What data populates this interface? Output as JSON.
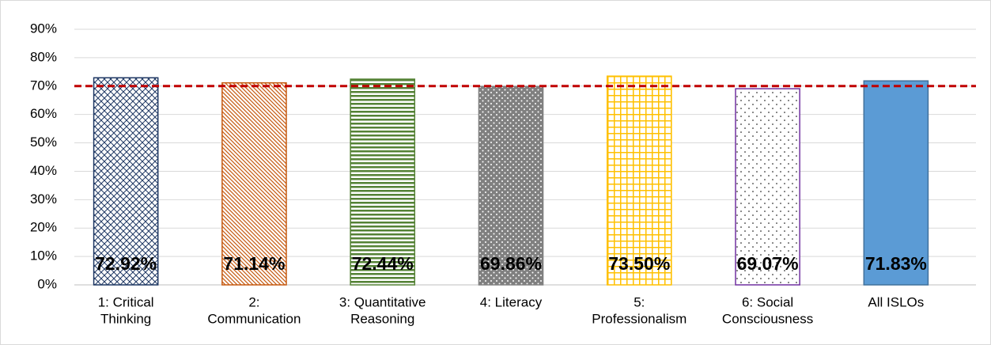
{
  "chart_data": {
    "type": "bar",
    "categories": [
      [
        "1: Critical",
        "Thinking"
      ],
      [
        "2:",
        "Communication"
      ],
      [
        "3: Quantitative",
        "Reasoning"
      ],
      [
        "4: Literacy"
      ],
      [
        "5:",
        "Professionalism"
      ],
      [
        "6: Social",
        "Consciousness"
      ],
      [
        "All ISLOs"
      ]
    ],
    "values": [
      72.92,
      71.14,
      72.44,
      69.86,
      73.5,
      69.07,
      71.83
    ],
    "value_labels": [
      "72.92%",
      "71.14%",
      "72.44%",
      "69.86%",
      "73.50%",
      "69.07%",
      "71.83%"
    ],
    "colors": [
      "#1f3864",
      "#c55a11",
      "#548235",
      "#808080",
      "#ffc000",
      "#7030a0",
      "#5b9bd5"
    ],
    "patterns": [
      "crosshatch",
      "diagonal",
      "horizontal",
      "dots-dense",
      "grid",
      "dots-sparse",
      "solid"
    ],
    "ylim": [
      0,
      90
    ],
    "yticks": [
      {
        "value": 0,
        "label": "0%"
      },
      {
        "value": 10,
        "label": "10%"
      },
      {
        "value": 20,
        "label": "20%"
      },
      {
        "value": 30,
        "label": "30%"
      },
      {
        "value": 40,
        "label": "40%"
      },
      {
        "value": 50,
        "label": "50%"
      },
      {
        "value": 60,
        "label": "60%"
      },
      {
        "value": 70,
        "label": "70%"
      },
      {
        "value": 80,
        "label": "80%"
      },
      {
        "value": 90,
        "label": "90%"
      }
    ],
    "grid": true,
    "reference_line": {
      "value": 70,
      "color": "#c00000"
    }
  }
}
